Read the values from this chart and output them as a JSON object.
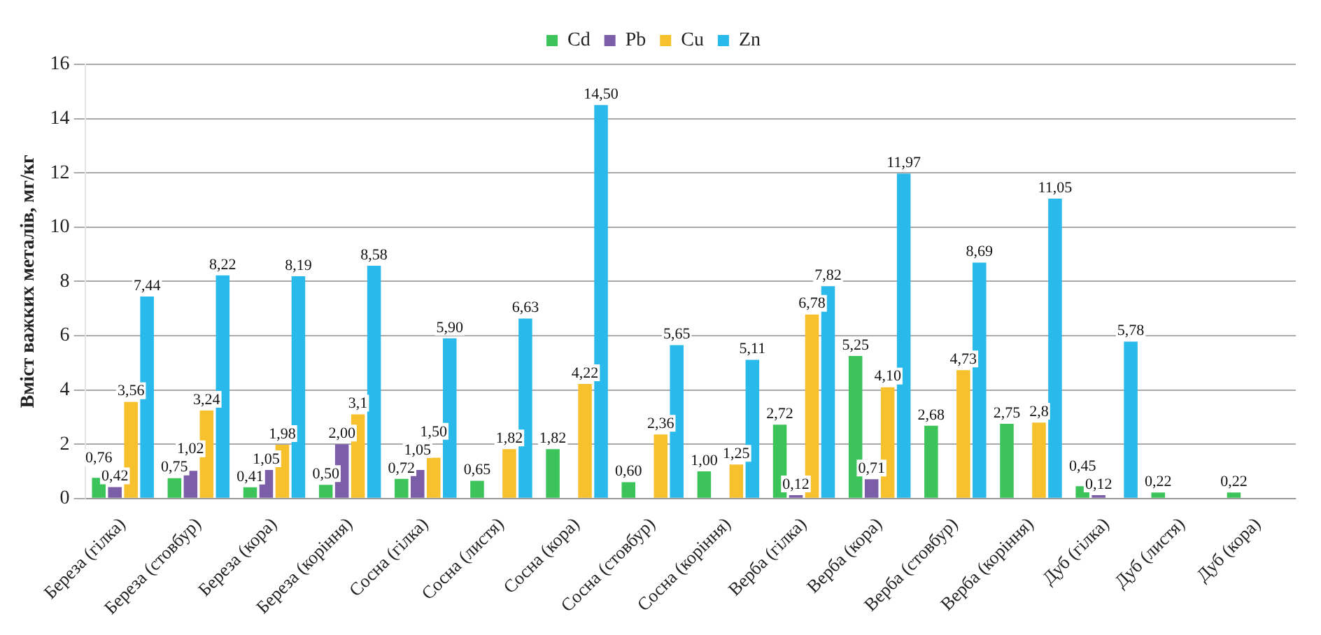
{
  "chart_data": {
    "type": "bar",
    "ylabel": "Вміст важких металів, мг/кг",
    "categories": [
      "Береза (гілка)",
      "Береза (стовбур)",
      "Береза (кора)",
      "Береза (коріння)",
      "Сосна (гілка)",
      "Сосна (листя)",
      "Сосна (кора)",
      "Сосна (стовбур)",
      "Сосна (коріння)",
      "Верба (гілка)",
      "Верба (кора)",
      "Верба (стовбур)",
      "Верба (коріння)",
      "Дуб (гілка)",
      "Дуб (листя)",
      "Дуб (кора)"
    ],
    "series": [
      {
        "name": "Cd",
        "color": "#3cc35a",
        "values": [
          0.76,
          0.75,
          0.41,
          0.5,
          0.72,
          0.65,
          1.82,
          0.6,
          1.0,
          2.72,
          5.25,
          2.68,
          2.75,
          0.45,
          0.22,
          0.22
        ],
        "value_labels": [
          "0,76",
          "0,75",
          "0,41",
          "0,50",
          "0,72",
          "0,65",
          "1,82",
          "0,60",
          "1,00",
          "2,72",
          "5,25",
          "2,68",
          "2,75",
          "0,45",
          "0,22",
          "0,22"
        ]
      },
      {
        "name": "Pb",
        "color": "#7b5ea7",
        "values": [
          0.42,
          1.02,
          1.05,
          2.0,
          1.05,
          null,
          null,
          null,
          null,
          0.12,
          0.71,
          null,
          null,
          0.12,
          null,
          null
        ],
        "value_labels": [
          "0,42",
          "1,02",
          "1,05",
          "2,00",
          "1,05",
          null,
          null,
          null,
          null,
          "0,12",
          "0,71",
          null,
          null,
          "0,12",
          null,
          null
        ]
      },
      {
        "name": "Cu",
        "color": "#f7c12e",
        "values": [
          3.56,
          3.24,
          1.98,
          3.1,
          1.5,
          1.82,
          4.22,
          2.36,
          1.25,
          6.78,
          4.1,
          4.73,
          2.8,
          null,
          null,
          null
        ],
        "value_labels": [
          "3,56",
          "3,24",
          "1,98",
          "3,1",
          "1,50",
          "1,82",
          "4,22",
          "2,36",
          "1,25",
          "6,78",
          "4,10",
          "4,73",
          "2,8",
          null,
          null,
          null
        ]
      },
      {
        "name": "Zn",
        "color": "#29b9ea",
        "values": [
          7.44,
          8.22,
          8.19,
          8.58,
          5.9,
          6.63,
          14.5,
          5.65,
          5.11,
          7.82,
          11.97,
          8.69,
          11.05,
          5.78,
          null,
          null
        ],
        "value_labels": [
          "7,44",
          "8,22",
          "8,19",
          "8,58",
          "5,90",
          "6,63",
          "14,50",
          "5,65",
          "5,11",
          "7,82",
          "11,97",
          "8,69",
          "11,05",
          "5,78",
          null,
          null
        ]
      }
    ],
    "ylim": [
      0,
      16
    ],
    "yticks": [
      0,
      2,
      4,
      6,
      8,
      10,
      12,
      14,
      16
    ],
    "grid": "y",
    "legend": "top"
  }
}
